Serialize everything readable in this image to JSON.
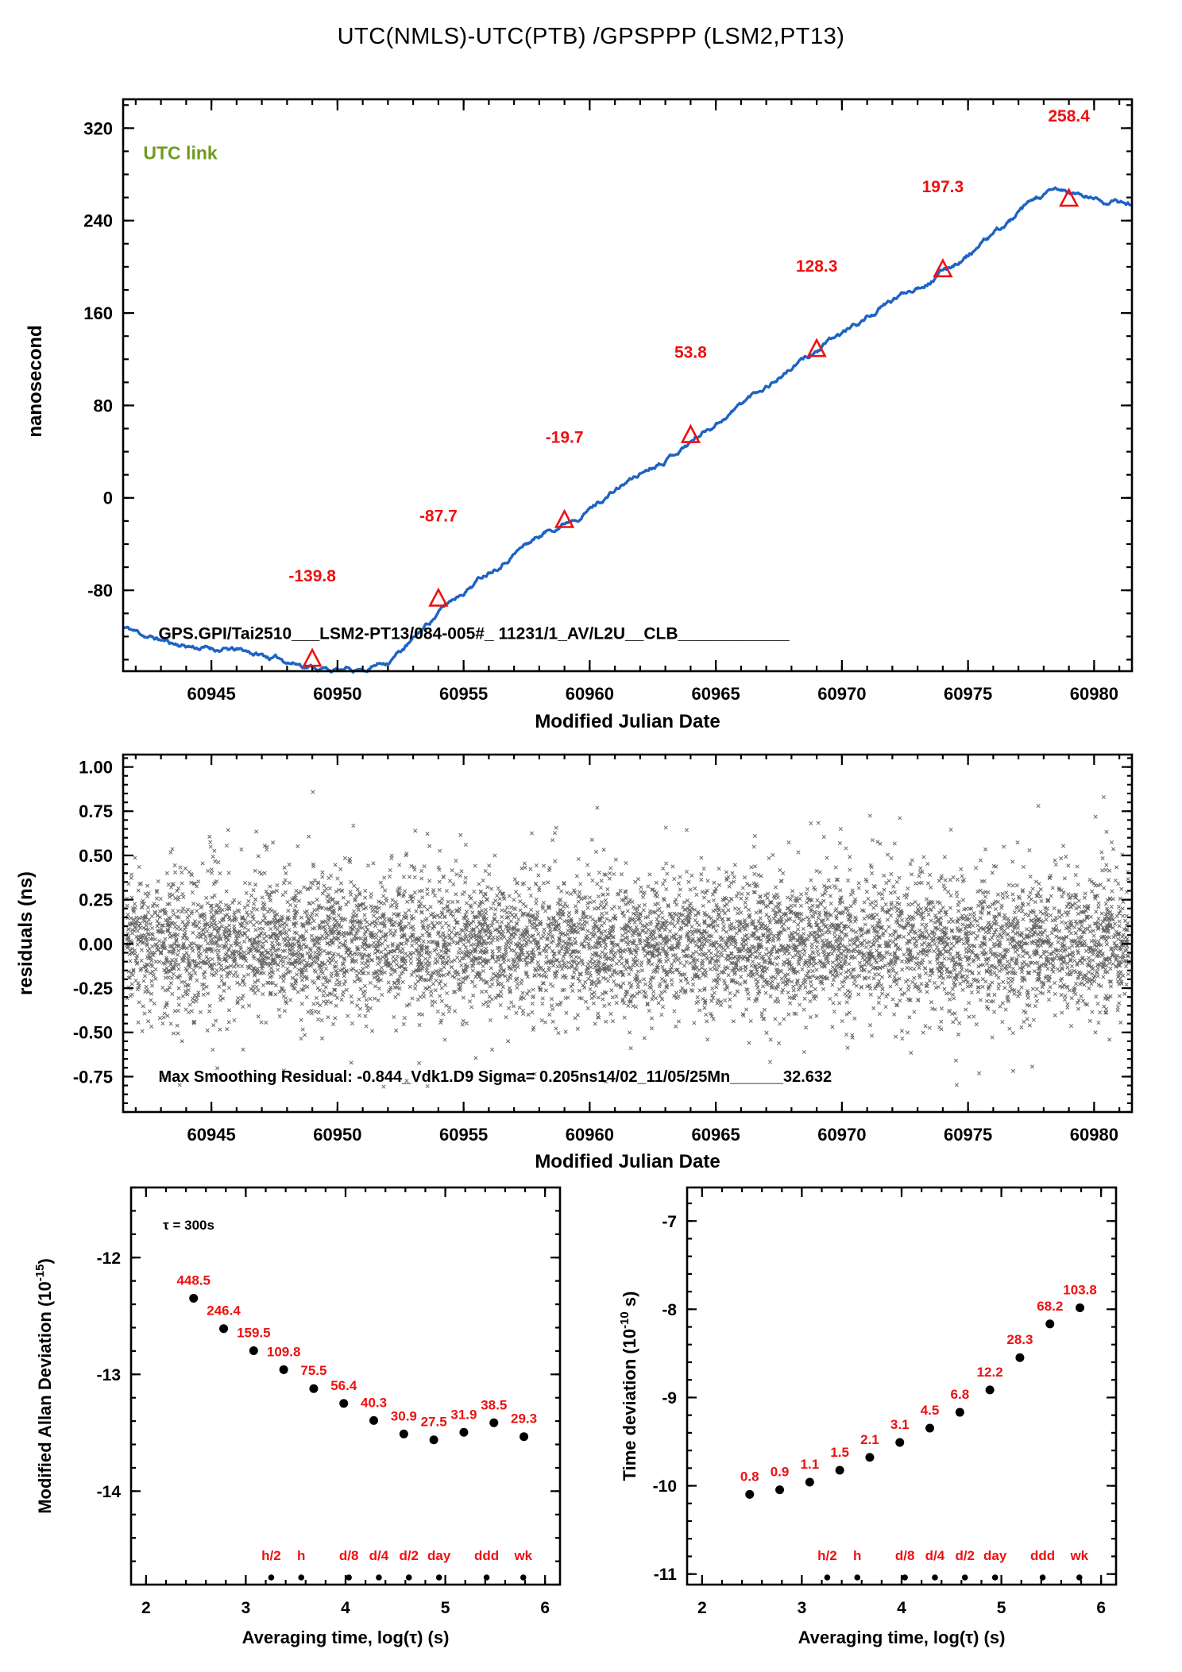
{
  "title": "UTC(NMLS)-UTC(PTB)  /GPSPPP  (LSM2,PT13)",
  "colors": {
    "line_blue": "#1e63c3",
    "marker_red": "#ee1111",
    "label_red": "#ee1111",
    "utc_green": "#6e9b1f",
    "scatter_black": "#000000"
  },
  "chart_data": [
    {
      "name": "phase",
      "type": "line",
      "ylabel": "nanosecond",
      "xlabel": "Modified Julian Date",
      "xlim": [
        60941.5,
        60981.5
      ],
      "ylim": [
        -150,
        345
      ],
      "xticks": [
        60945,
        60950,
        60955,
        60960,
        60965,
        60970,
        60975,
        60980
      ],
      "yticks": [
        320,
        240,
        160,
        80,
        0,
        -80
      ],
      "x_minor": 1,
      "y_minor": 20,
      "annotations": {
        "utc_link": "UTC link",
        "gps_line": "GPS.GPI/Tai2510___LSM2-PT13/084-005#_  11231/1_AV/L2U__CLB____________"
      },
      "line_keypoints": [
        [
          60941.5,
          -112
        ],
        [
          60942.5,
          -120
        ],
        [
          60943.5,
          -126
        ],
        [
          60944.5,
          -129
        ],
        [
          60945.5,
          -131
        ],
        [
          60946.5,
          -134
        ],
        [
          60947.5,
          -139
        ],
        [
          60948.5,
          -143
        ],
        [
          60949.5,
          -147
        ],
        [
          60950.2,
          -150
        ],
        [
          60951,
          -148
        ],
        [
          60952,
          -140
        ],
        [
          60953,
          -123
        ],
        [
          60954,
          -99
        ],
        [
          60955,
          -80
        ],
        [
          60956,
          -62
        ],
        [
          60957,
          -45
        ],
        [
          60958,
          -32
        ],
        [
          60959,
          -20
        ],
        [
          60960,
          -7
        ],
        [
          60961,
          7
        ],
        [
          60962,
          21
        ],
        [
          60963,
          36
        ],
        [
          60964,
          50
        ],
        [
          60965,
          66
        ],
        [
          60966,
          82
        ],
        [
          60967,
          98
        ],
        [
          60968,
          113
        ],
        [
          60969,
          127
        ],
        [
          60970,
          141
        ],
        [
          60971,
          156
        ],
        [
          60972,
          170
        ],
        [
          60973,
          184
        ],
        [
          60974,
          197
        ],
        [
          60975,
          211
        ],
        [
          60976,
          227
        ],
        [
          60977,
          245
        ],
        [
          60977.8,
          258
        ],
        [
          60978.5,
          264
        ],
        [
          60979,
          263
        ],
        [
          60979.6,
          260
        ],
        [
          60980.3,
          257
        ],
        [
          60981.5,
          254
        ]
      ],
      "daily_points": [
        {
          "mjd": 60949,
          "ns": -139.8,
          "label": "-139.8"
        },
        {
          "mjd": 60954,
          "ns": -87.7,
          "label": "-87.7"
        },
        {
          "mjd": 60959,
          "ns": -19.7,
          "label": "-19.7"
        },
        {
          "mjd": 60964,
          "ns": 53.8,
          "label": "53.8"
        },
        {
          "mjd": 60969,
          "ns": 128.3,
          "label": "128.3"
        },
        {
          "mjd": 60974,
          "ns": 197.3,
          "label": "197.3"
        },
        {
          "mjd": 60979,
          "ns": 258.4,
          "label": "258.4"
        }
      ]
    },
    {
      "name": "residuals",
      "type": "scatter",
      "ylabel": "residuals (ns)",
      "xlabel": "Modified Julian Date",
      "xlim": [
        60941.5,
        60981.5
      ],
      "ylim": [
        -0.95,
        1.07
      ],
      "xticks": [
        60945,
        60950,
        60955,
        60960,
        60965,
        60970,
        60975,
        60980
      ],
      "yticks": [
        1.0,
        0.75,
        0.5,
        0.25,
        0.0,
        -0.25,
        -0.5,
        -0.75
      ],
      "ytick_labels": [
        "1.00",
        "0.75",
        "0.50",
        "0.25",
        "0.00",
        "-0.25",
        "-0.50",
        "-0.75"
      ],
      "x_minor": 1,
      "y_minor": 0.05,
      "noise": {
        "n": 6800,
        "sigma": 0.205,
        "seed": 42,
        "clip": [
          -0.83,
          0.87
        ]
      },
      "annotations": {
        "stats_line": "Max Smoothing Residual: -0.844_Vdk1.D9  Sigma= 0.205ns14/02_11/05/25Mn______32.632"
      }
    },
    {
      "name": "mdev",
      "type": "scatter",
      "ylabel_parts": [
        [
          "Modified Allan Deviation (10",
          false
        ],
        [
          "-15",
          true
        ],
        [
          ")",
          false
        ]
      ],
      "xlabel": "Averaging time, log(τ) (s)",
      "xlim": [
        1.85,
        6.15
      ],
      "ylim": [
        -14.8,
        -11.4
      ],
      "xticks": [
        2,
        3,
        4,
        5,
        6
      ],
      "yticks": [
        -12,
        -13,
        -14
      ],
      "x_minor": 0.2,
      "y_minor": 0.2,
      "tau_note": "τ = 300s",
      "tau_note_pos": [
        2.17,
        -11.76
      ],
      "log_tau": [
        2.477,
        2.778,
        3.079,
        3.38,
        3.681,
        3.982,
        4.283,
        4.584,
        4.885,
        5.186,
        5.487,
        5.788
      ],
      "values": [
        448.5,
        246.4,
        159.5,
        109.8,
        75.5,
        56.4,
        40.3,
        30.9,
        27.5,
        31.9,
        38.5,
        29.3
      ],
      "time_marks": [
        {
          "label": "h/2",
          "log_tau": 3.255
        },
        {
          "label": "h",
          "log_tau": 3.556
        },
        {
          "label": "d/8",
          "log_tau": 4.033
        },
        {
          "label": "d/4",
          "log_tau": 4.334
        },
        {
          "label": "d/2",
          "log_tau": 4.635
        },
        {
          "label": "day",
          "log_tau": 4.937
        },
        {
          "label": "ddd",
          "log_tau": 5.414
        },
        {
          "label": "wk",
          "log_tau": 5.782
        }
      ]
    },
    {
      "name": "tdev",
      "type": "scatter",
      "ylabel_parts": [
        [
          "Time deviation (10",
          false
        ],
        [
          "-10",
          true
        ],
        [
          " s)",
          false
        ]
      ],
      "xlabel": "Averaging time, log(τ) (s)",
      "xlim": [
        1.85,
        6.15
      ],
      "ylim": [
        -11.12,
        -6.62
      ],
      "xticks": [
        2,
        3,
        4,
        5,
        6
      ],
      "yticks": [
        -7,
        -8,
        -9,
        -10,
        -11
      ],
      "x_minor": 0.2,
      "y_minor": 0.2,
      "log_tau": [
        2.477,
        2.778,
        3.079,
        3.38,
        3.681,
        3.982,
        4.283,
        4.584,
        4.885,
        5.186,
        5.487,
        5.788
      ],
      "values": [
        0.8,
        0.9,
        1.1,
        1.5,
        2.1,
        3.1,
        4.5,
        6.8,
        12.2,
        28.3,
        68.2,
        103.8
      ],
      "time_marks": [
        {
          "label": "h/2",
          "log_tau": 3.255
        },
        {
          "label": "h",
          "log_tau": 3.556
        },
        {
          "label": "d/8",
          "log_tau": 4.033
        },
        {
          "label": "d/4",
          "log_tau": 4.334
        },
        {
          "label": "d/2",
          "log_tau": 4.635
        },
        {
          "label": "day",
          "log_tau": 4.937
        },
        {
          "label": "ddd",
          "log_tau": 5.414
        },
        {
          "label": "wk",
          "log_tau": 5.782
        }
      ]
    }
  ]
}
